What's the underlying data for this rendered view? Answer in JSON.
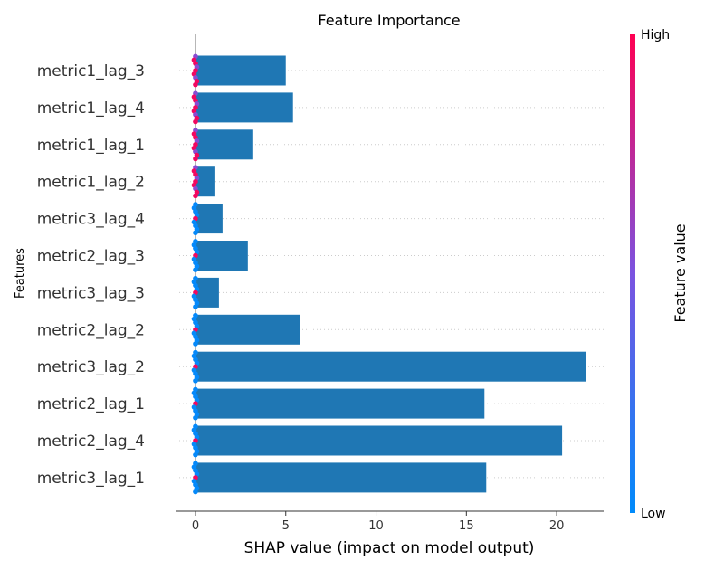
{
  "chart_data": {
    "type": "bar",
    "title": "Feature Importance",
    "xlabel": "SHAP value (impact on model output)",
    "ylabel": "Features",
    "categories": [
      "metric1_lag_3",
      "metric1_lag_4",
      "metric1_lag_1",
      "metric1_lag_2",
      "metric3_lag_4",
      "metric2_lag_3",
      "metric3_lag_3",
      "metric2_lag_2",
      "metric3_lag_2",
      "metric2_lag_1",
      "metric2_lag_4",
      "metric3_lag_1"
    ],
    "values": [
      5.0,
      5.4,
      3.2,
      1.1,
      1.5,
      2.9,
      1.3,
      5.8,
      21.6,
      16.0,
      20.3,
      16.1
    ],
    "xlim": [
      -1.1,
      22.6
    ],
    "xticks": [
      0,
      5,
      10,
      15,
      20
    ],
    "bar_color": "#1f77b4",
    "grid": "dotted horizontal",
    "colorbar": {
      "title": "Feature value",
      "high_label": "High",
      "low_label": "Low",
      "high_color": "#ff0052",
      "mid_color": "#7b53e0",
      "low_color": "#008bfb"
    }
  }
}
